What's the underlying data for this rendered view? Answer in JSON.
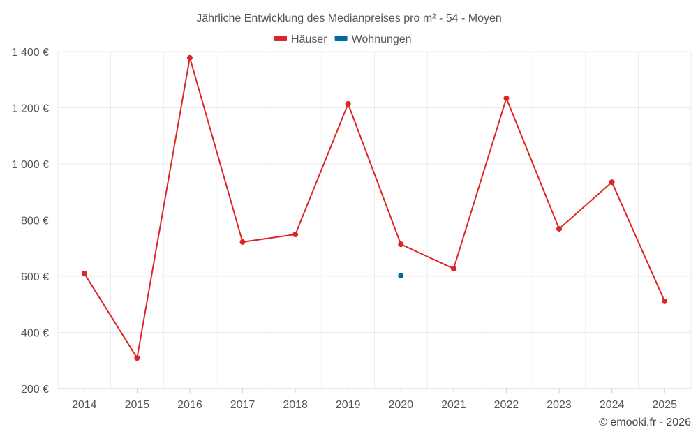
{
  "chart_data": {
    "type": "line",
    "title": "Jährliche Entwicklung des Medianpreises pro m² - 54 - Moyen",
    "categories": [
      "2014",
      "2015",
      "2016",
      "2017",
      "2018",
      "2019",
      "2020",
      "2021",
      "2022",
      "2023",
      "2024",
      "2025"
    ],
    "series": [
      {
        "name": "Häuser",
        "color": "#dc2626",
        "values": [
          610,
          309,
          1378,
          722,
          749,
          1214,
          714,
          627,
          1234,
          769,
          935,
          511
        ]
      },
      {
        "name": "Wohnungen",
        "color": "#0369a1",
        "values": [
          null,
          null,
          null,
          null,
          null,
          null,
          602,
          null,
          null,
          null,
          null,
          null
        ]
      }
    ],
    "ylim": [
      200,
      1400
    ],
    "yticks": [
      200,
      400,
      600,
      800,
      1000,
      1200,
      1400
    ],
    "ytick_labels": [
      "200 €",
      "400 €",
      "600 €",
      "800 €",
      "1 000 €",
      "1 200 €",
      "1 400 €"
    ],
    "xlabel": "",
    "ylabel": "",
    "grid": true,
    "legend": "top-center"
  },
  "credit": "© emooki.fr - 2026"
}
